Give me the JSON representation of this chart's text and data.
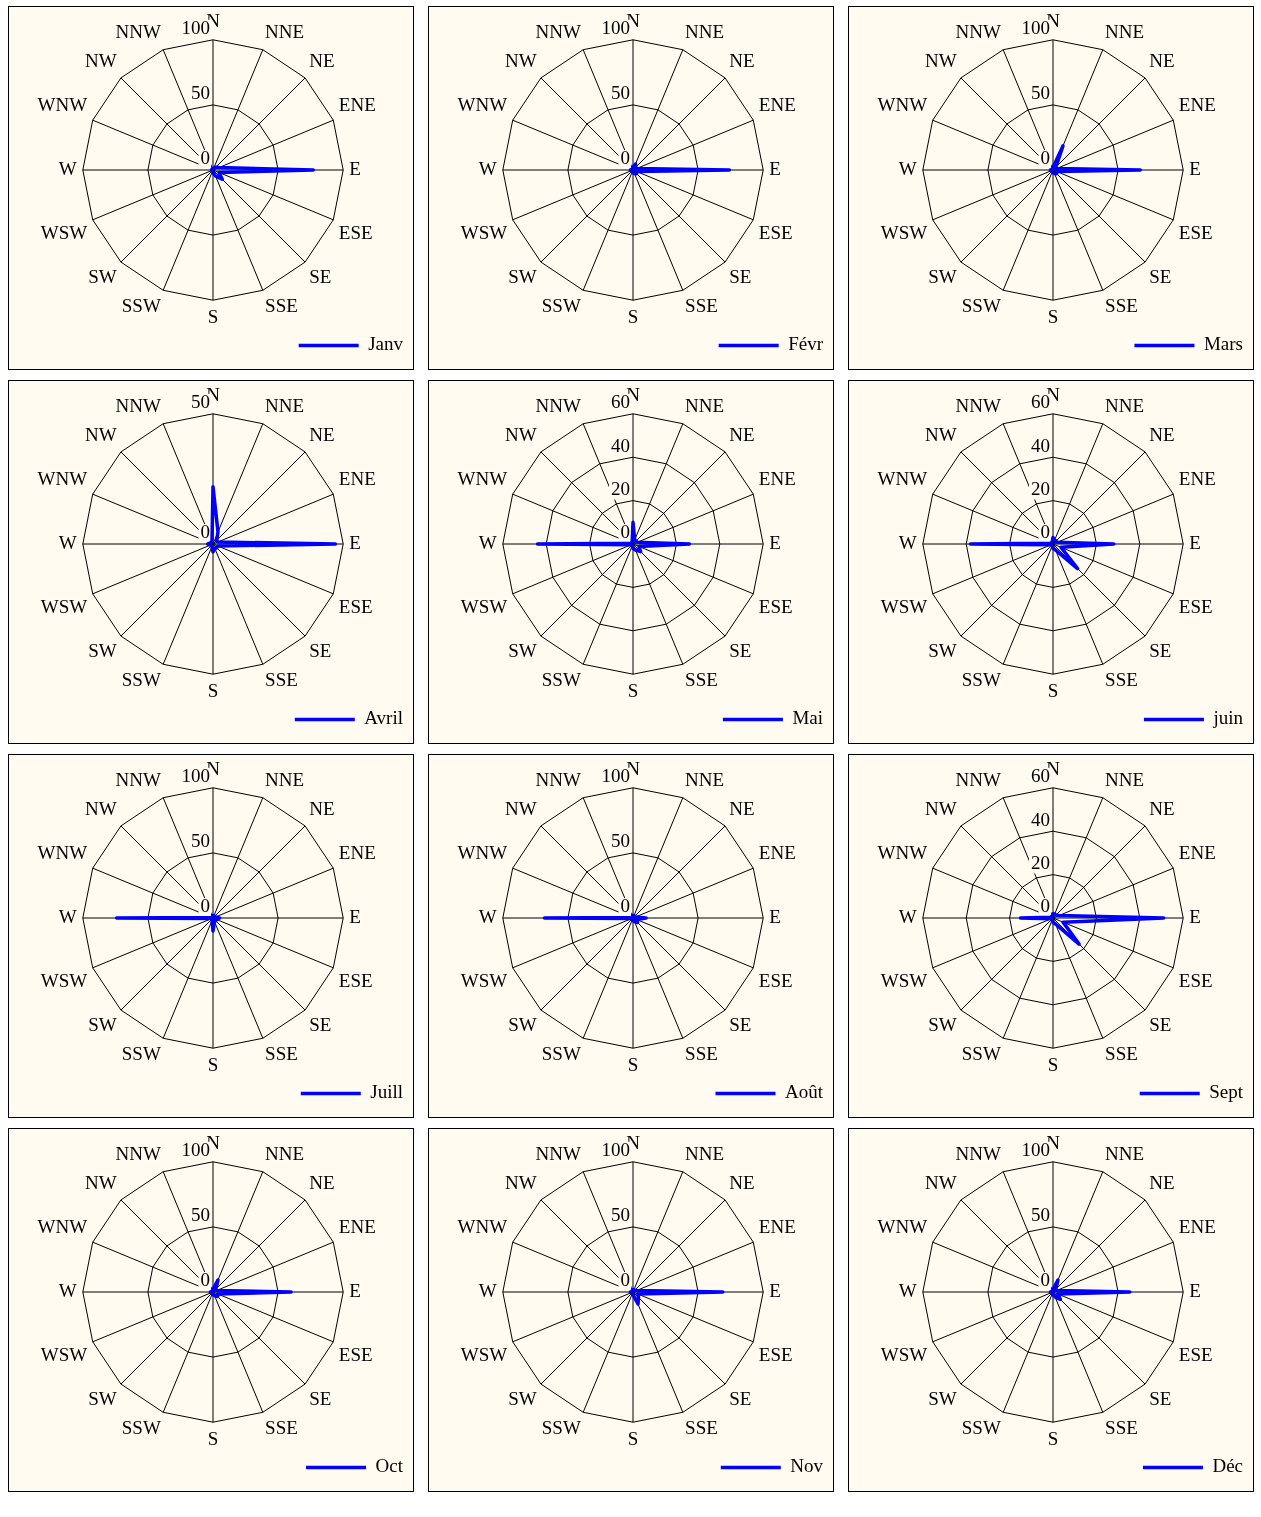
{
  "chart_data": [
    {
      "type": "radar",
      "categories": [
        "N",
        "NNE",
        "NE",
        "ENE",
        "E",
        "ESE",
        "SE",
        "SSE",
        "S",
        "SSW",
        "SW",
        "WSW",
        "W",
        "WNW",
        "NW",
        "NNW"
      ],
      "ylim": [
        0,
        100
      ],
      "yticks": [
        0,
        50,
        100
      ],
      "legend": "bottom right",
      "series": [
        {
          "name": "Janv",
          "color": "#0000ff",
          "values": [
            1,
            2,
            3,
            5,
            77,
            5,
            10,
            5,
            2,
            1,
            1,
            1,
            1,
            1,
            1,
            1
          ]
        }
      ]
    },
    {
      "type": "radar",
      "categories": [
        "N",
        "NNE",
        "NE",
        "ENE",
        "E",
        "ESE",
        "SE",
        "SSE",
        "S",
        "SSW",
        "SW",
        "WSW",
        "W",
        "WNW",
        "NW",
        "NNW"
      ],
      "ylim": [
        0,
        100
      ],
      "yticks": [
        0,
        50,
        100
      ],
      "legend": "bottom right",
      "series": [
        {
          "name": "Févr",
          "color": "#0000ff",
          "values": [
            2,
            5,
            3,
            3,
            74,
            3,
            4,
            3,
            2,
            1,
            1,
            1,
            2,
            1,
            1,
            1
          ]
        }
      ]
    },
    {
      "type": "radar",
      "categories": [
        "N",
        "NNE",
        "NE",
        "ENE",
        "E",
        "ESE",
        "SE",
        "SSE",
        "S",
        "SSW",
        "SW",
        "WSW",
        "W",
        "WNW",
        "NW",
        "NNW"
      ],
      "ylim": [
        0,
        100
      ],
      "yticks": [
        0,
        50,
        100
      ],
      "legend": "bottom right",
      "series": [
        {
          "name": "Mars",
          "color": "#0000ff",
          "values": [
            2,
            20,
            3,
            3,
            67,
            3,
            4,
            3,
            2,
            1,
            1,
            1,
            2,
            1,
            1,
            1
          ]
        }
      ]
    },
    {
      "type": "radar",
      "categories": [
        "N",
        "NNE",
        "NE",
        "ENE",
        "E",
        "ESE",
        "SE",
        "SSE",
        "S",
        "SSW",
        "SW",
        "WSW",
        "W",
        "WNW",
        "NW",
        "NNW"
      ],
      "ylim": [
        0,
        50
      ],
      "yticks": [
        0,
        50
      ],
      "legend": "bottom right",
      "series": [
        {
          "name": "Avril",
          "color": "#0000ff",
          "values": [
            22,
            5,
            2,
            2,
            47,
            2,
            2,
            2,
            3,
            1,
            1,
            1,
            2,
            1,
            1,
            1
          ]
        }
      ]
    },
    {
      "type": "radar",
      "categories": [
        "N",
        "NNE",
        "NE",
        "ENE",
        "E",
        "ESE",
        "SE",
        "SSE",
        "S",
        "SSW",
        "SW",
        "WSW",
        "W",
        "WNW",
        "NW",
        "NNW"
      ],
      "ylim": [
        0,
        60
      ],
      "yticks": [
        0,
        20,
        40,
        60
      ],
      "legend": "bottom right",
      "series": [
        {
          "name": "Mai",
          "color": "#0000ff",
          "values": [
            10,
            2,
            2,
            2,
            26,
            3,
            5,
            3,
            2,
            1,
            1,
            1,
            44,
            1,
            1,
            1
          ]
        }
      ]
    },
    {
      "type": "radar",
      "categories": [
        "N",
        "NNE",
        "NE",
        "ENE",
        "E",
        "ESE",
        "SE",
        "SSE",
        "S",
        "SSW",
        "SW",
        "WSW",
        "W",
        "WNW",
        "NW",
        "NNW"
      ],
      "ylim": [
        0,
        60
      ],
      "yticks": [
        0,
        20,
        40,
        60
      ],
      "legend": "bottom right",
      "series": [
        {
          "name": "juin",
          "color": "#0000ff",
          "values": [
            3,
            2,
            2,
            2,
            28,
            4,
            16,
            3,
            2,
            1,
            1,
            1,
            38,
            1,
            1,
            1
          ]
        }
      ]
    },
    {
      "type": "radar",
      "categories": [
        "N",
        "NNE",
        "NE",
        "ENE",
        "E",
        "ESE",
        "SE",
        "SSE",
        "S",
        "SSW",
        "SW",
        "WSW",
        "W",
        "WNW",
        "NW",
        "NNW"
      ],
      "ylim": [
        0,
        100
      ],
      "yticks": [
        0,
        50,
        100
      ],
      "legend": "bottom right",
      "series": [
        {
          "name": "Juill",
          "color": "#0000ff",
          "values": [
            2,
            2,
            2,
            2,
            5,
            3,
            3,
            3,
            10,
            2,
            1,
            1,
            74,
            1,
            1,
            1
          ]
        }
      ]
    },
    {
      "type": "radar",
      "categories": [
        "N",
        "NNE",
        "NE",
        "ENE",
        "E",
        "ESE",
        "SE",
        "SSE",
        "S",
        "SSW",
        "SW",
        "WSW",
        "W",
        "WNW",
        "NW",
        "NNW"
      ],
      "ylim": [
        0,
        100
      ],
      "yticks": [
        0,
        50,
        100
      ],
      "legend": "bottom right",
      "series": [
        {
          "name": "Août",
          "color": "#0000ff",
          "values": [
            2,
            2,
            2,
            2,
            10,
            3,
            5,
            3,
            2,
            1,
            1,
            1,
            68,
            1,
            1,
            1
          ]
        }
      ]
    },
    {
      "type": "radar",
      "categories": [
        "N",
        "NNE",
        "NE",
        "ENE",
        "E",
        "ESE",
        "SE",
        "SSE",
        "S",
        "SSW",
        "SW",
        "WSW",
        "W",
        "WNW",
        "NW",
        "NNW"
      ],
      "ylim": [
        0,
        60
      ],
      "yticks": [
        0,
        20,
        40,
        60
      ],
      "legend": "bottom right",
      "series": [
        {
          "name": "Sept",
          "color": "#0000ff",
          "values": [
            2,
            2,
            2,
            3,
            51,
            5,
            17,
            3,
            2,
            1,
            1,
            1,
            15,
            1,
            1,
            1
          ]
        }
      ]
    },
    {
      "type": "radar",
      "categories": [
        "N",
        "NNE",
        "NE",
        "ENE",
        "E",
        "ESE",
        "SE",
        "SSE",
        "S",
        "SSW",
        "SW",
        "WSW",
        "W",
        "WNW",
        "NW",
        "NNW"
      ],
      "ylim": [
        0,
        100
      ],
      "yticks": [
        0,
        50,
        100
      ],
      "legend": "bottom right",
      "series": [
        {
          "name": "Oct",
          "color": "#0000ff",
          "values": [
            2,
            10,
            3,
            3,
            60,
            4,
            5,
            3,
            2,
            1,
            1,
            1,
            2,
            1,
            1,
            1
          ]
        }
      ]
    },
    {
      "type": "radar",
      "categories": [
        "N",
        "NNE",
        "NE",
        "ENE",
        "E",
        "ESE",
        "SE",
        "SSE",
        "S",
        "SSW",
        "SW",
        "WSW",
        "W",
        "WNW",
        "NW",
        "NNW"
      ],
      "ylim": [
        0,
        100
      ],
      "yticks": [
        0,
        50,
        100
      ],
      "legend": "bottom right",
      "series": [
        {
          "name": "Nov",
          "color": "#0000ff",
          "values": [
            2,
            2,
            2,
            3,
            69,
            4,
            6,
            10,
            2,
            1,
            1,
            1,
            2,
            1,
            1,
            1
          ]
        }
      ]
    },
    {
      "type": "radar",
      "categories": [
        "N",
        "NNE",
        "NE",
        "ENE",
        "E",
        "ESE",
        "SE",
        "SSE",
        "S",
        "SSW",
        "SW",
        "WSW",
        "W",
        "WNW",
        "NW",
        "NNW"
      ],
      "ylim": [
        0,
        100
      ],
      "yticks": [
        0,
        50,
        100
      ],
      "legend": "bottom right",
      "series": [
        {
          "name": "Déc",
          "color": "#0000ff",
          "values": [
            2,
            10,
            3,
            3,
            59,
            4,
            8,
            4,
            2,
            1,
            1,
            1,
            2,
            1,
            1,
            1
          ]
        }
      ]
    }
  ]
}
